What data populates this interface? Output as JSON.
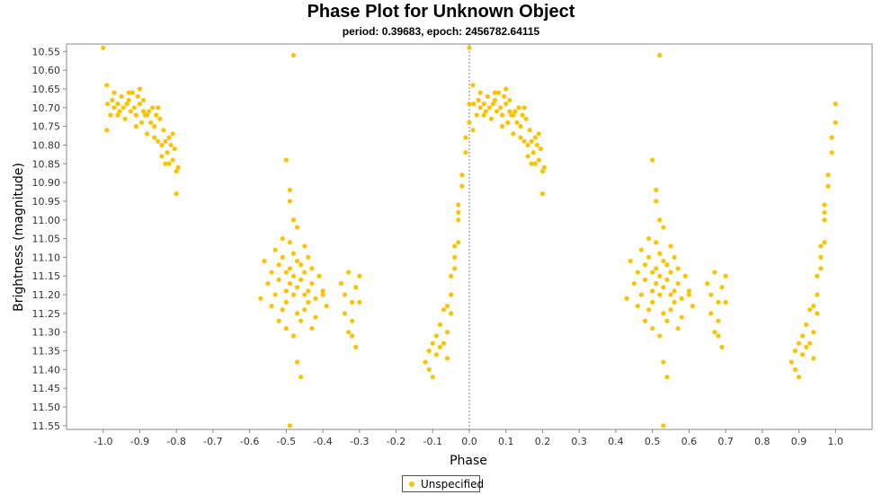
{
  "chart_data": {
    "type": "scatter",
    "title": "Phase Plot for Unknown Object",
    "subtitle": "period: 0.39683, epoch: 2456782.64115",
    "xlabel": "Phase",
    "ylabel": "Brightness (magnitude)",
    "xlim": [
      -1.1,
      1.1
    ],
    "ylim": [
      11.56,
      10.53
    ],
    "y_inverted": true,
    "x_ticks": [
      "-1.0",
      "-0.9",
      "-0.8",
      "-0.7",
      "-0.6",
      "-0.5",
      "-0.4",
      "-0.3",
      "-0.2",
      "-0.1",
      "0.0",
      "0.1",
      "0.2",
      "0.3",
      "0.4",
      "0.5",
      "0.6",
      "0.7",
      "0.8",
      "0.9",
      "1.0"
    ],
    "y_ticks": [
      "10.55",
      "10.60",
      "10.65",
      "10.70",
      "10.75",
      "10.80",
      "10.85",
      "10.90",
      "10.95",
      "11.00",
      "11.05",
      "11.10",
      "11.15",
      "11.20",
      "11.25",
      "11.30",
      "11.35",
      "11.40",
      "11.45",
      "11.50",
      "11.55"
    ],
    "grid": false,
    "reference_line_x": 0.0,
    "legend_position": "bottom-center",
    "series": [
      {
        "name": "Unspecified",
        "color": "#FFC200",
        "points": [
          [
            0.0,
            10.54
          ],
          [
            0.01,
            10.64
          ],
          [
            0.012,
            10.69
          ],
          [
            0.02,
            10.72
          ],
          [
            0.025,
            10.68
          ],
          [
            0.03,
            10.7
          ],
          [
            0.04,
            10.69
          ],
          [
            0.045,
            10.71
          ],
          [
            0.05,
            10.67
          ],
          [
            0.055,
            10.7
          ],
          [
            0.06,
            10.73
          ],
          [
            0.065,
            10.69
          ],
          [
            0.07,
            10.68
          ],
          [
            0.075,
            10.71
          ],
          [
            0.08,
            10.66
          ],
          [
            0.085,
            10.7
          ],
          [
            0.09,
            10.72
          ],
          [
            0.095,
            10.67
          ],
          [
            0.1,
            10.69
          ],
          [
            0.105,
            10.74
          ],
          [
            0.11,
            10.68
          ],
          [
            0.115,
            10.72
          ],
          [
            0.12,
            10.77
          ],
          [
            0.125,
            10.71
          ],
          [
            0.13,
            10.74
          ],
          [
            0.135,
            10.7
          ],
          [
            0.14,
            10.75
          ],
          [
            0.145,
            10.72
          ],
          [
            0.15,
            10.79
          ],
          [
            0.155,
            10.73
          ],
          [
            0.16,
            10.8
          ],
          [
            0.165,
            10.76
          ],
          [
            0.17,
            10.79
          ],
          [
            0.175,
            10.82
          ],
          [
            0.18,
            10.78
          ],
          [
            0.185,
            10.8
          ],
          [
            0.19,
            10.84
          ],
          [
            0.195,
            10.81
          ],
          [
            0.2,
            10.87
          ],
          [
            0.205,
            10.86
          ],
          [
            0.2,
            10.93
          ],
          [
            0.18,
            10.85
          ],
          [
            0.16,
            10.83
          ],
          [
            0.14,
            10.78
          ],
          [
            0.12,
            10.72
          ],
          [
            0.09,
            10.75
          ],
          [
            0.07,
            10.66
          ],
          [
            0.03,
            10.66
          ],
          [
            0.01,
            10.76
          ],
          [
            0.04,
            10.72
          ],
          [
            0.1,
            10.65
          ],
          [
            0.15,
            10.7
          ],
          [
            0.17,
            10.85
          ],
          [
            0.19,
            10.77
          ],
          [
            0.11,
            10.71
          ],
          [
            0.43,
            11.21
          ],
          [
            0.44,
            11.11
          ],
          [
            0.45,
            11.17
          ],
          [
            0.46,
            11.14
          ],
          [
            0.47,
            11.08
          ],
          [
            0.47,
            11.2
          ],
          [
            0.48,
            11.12
          ],
          [
            0.48,
            11.16
          ],
          [
            0.49,
            11.24
          ],
          [
            0.49,
            11.1
          ],
          [
            0.5,
            11.14
          ],
          [
            0.5,
            11.19
          ],
          [
            0.5,
            11.22
          ],
          [
            0.51,
            11.06
          ],
          [
            0.51,
            11.13
          ],
          [
            0.51,
            11.17
          ],
          [
            0.52,
            11.09
          ],
          [
            0.52,
            11.2
          ],
          [
            0.52,
            11.15
          ],
          [
            0.53,
            11.11
          ],
          [
            0.53,
            11.18
          ],
          [
            0.53,
            11.25
          ],
          [
            0.54,
            11.12
          ],
          [
            0.54,
            11.16
          ],
          [
            0.55,
            11.07
          ],
          [
            0.55,
            11.2
          ],
          [
            0.55,
            11.14
          ],
          [
            0.56,
            11.22
          ],
          [
            0.56,
            11.1
          ],
          [
            0.57,
            11.17
          ],
          [
            0.57,
            11.13
          ],
          [
            0.58,
            11.21
          ],
          [
            0.59,
            11.15
          ],
          [
            0.6,
            11.19
          ],
          [
            0.61,
            11.23
          ],
          [
            0.46,
            11.23
          ],
          [
            0.48,
            11.27
          ],
          [
            0.5,
            10.84
          ],
          [
            0.51,
            10.92
          ],
          [
            0.51,
            10.95
          ],
          [
            0.52,
            10.56
          ],
          [
            0.52,
            11.31
          ],
          [
            0.53,
            11.38
          ],
          [
            0.53,
            11.55
          ],
          [
            0.54,
            11.42
          ],
          [
            0.53,
            11.02
          ],
          [
            0.52,
            11.0
          ],
          [
            0.5,
            11.29
          ],
          [
            0.49,
            11.05
          ],
          [
            0.54,
            11.27
          ],
          [
            0.55,
            11.24
          ],
          [
            0.57,
            11.29
          ],
          [
            0.58,
            11.26
          ],
          [
            0.56,
            11.19
          ],
          [
            0.6,
            11.2
          ],
          [
            0.65,
            11.17
          ],
          [
            0.66,
            11.2
          ],
          [
            0.66,
            11.25
          ],
          [
            0.67,
            11.14
          ],
          [
            0.67,
            11.3
          ],
          [
            0.68,
            11.22
          ],
          [
            0.68,
            11.27
          ],
          [
            0.69,
            11.18
          ],
          [
            0.69,
            11.34
          ],
          [
            0.7,
            11.22
          ],
          [
            0.7,
            11.15
          ],
          [
            0.68,
            11.31
          ],
          [
            0.88,
            11.38
          ],
          [
            0.89,
            11.4
          ],
          [
            0.89,
            11.35
          ],
          [
            0.9,
            11.33
          ],
          [
            0.9,
            11.42
          ],
          [
            0.91,
            11.36
          ],
          [
            0.91,
            11.31
          ],
          [
            0.92,
            11.34
          ],
          [
            0.92,
            11.28
          ],
          [
            0.93,
            11.24
          ],
          [
            0.93,
            11.33
          ],
          [
            0.94,
            11.23
          ],
          [
            0.94,
            11.37
          ],
          [
            0.95,
            11.2
          ],
          [
            0.95,
            11.15
          ],
          [
            0.96,
            11.1
          ],
          [
            0.96,
            11.07
          ],
          [
            0.97,
            11.06
          ],
          [
            0.97,
            11.0
          ],
          [
            0.97,
            10.96
          ],
          [
            0.98,
            10.91
          ],
          [
            0.98,
            10.88
          ],
          [
            0.99,
            10.82
          ],
          [
            0.99,
            10.78
          ],
          [
            1.0,
            10.74
          ],
          [
            1.0,
            10.69
          ],
          [
            0.96,
            11.13
          ],
          [
            0.95,
            11.25
          ],
          [
            0.94,
            11.3
          ],
          [
            0.97,
            10.98
          ],
          [
            -1.0,
            10.54
          ],
          [
            -0.99,
            10.64
          ],
          [
            -0.988,
            10.69
          ],
          [
            -0.98,
            10.72
          ],
          [
            -0.975,
            10.68
          ],
          [
            -0.97,
            10.7
          ],
          [
            -0.96,
            10.69
          ],
          [
            -0.955,
            10.71
          ],
          [
            -0.95,
            10.67
          ],
          [
            -0.945,
            10.7
          ],
          [
            -0.94,
            10.73
          ],
          [
            -0.935,
            10.69
          ],
          [
            -0.93,
            10.68
          ],
          [
            -0.925,
            10.71
          ],
          [
            -0.92,
            10.66
          ],
          [
            -0.915,
            10.7
          ],
          [
            -0.91,
            10.72
          ],
          [
            -0.905,
            10.67
          ],
          [
            -0.9,
            10.69
          ],
          [
            -0.895,
            10.74
          ],
          [
            -0.89,
            10.68
          ],
          [
            -0.885,
            10.72
          ],
          [
            -0.88,
            10.77
          ],
          [
            -0.875,
            10.71
          ],
          [
            -0.87,
            10.74
          ],
          [
            -0.865,
            10.7
          ],
          [
            -0.86,
            10.75
          ],
          [
            -0.855,
            10.72
          ],
          [
            -0.85,
            10.79
          ],
          [
            -0.845,
            10.73
          ],
          [
            -0.84,
            10.8
          ],
          [
            -0.835,
            10.76
          ],
          [
            -0.83,
            10.79
          ],
          [
            -0.825,
            10.82
          ],
          [
            -0.82,
            10.78
          ],
          [
            -0.815,
            10.8
          ],
          [
            -0.81,
            10.84
          ],
          [
            -0.805,
            10.81
          ],
          [
            -0.8,
            10.87
          ],
          [
            -0.795,
            10.86
          ],
          [
            -0.8,
            10.93
          ],
          [
            -0.82,
            10.85
          ],
          [
            -0.84,
            10.83
          ],
          [
            -0.86,
            10.78
          ],
          [
            -0.88,
            10.72
          ],
          [
            -0.91,
            10.75
          ],
          [
            -0.93,
            10.66
          ],
          [
            -0.97,
            10.66
          ],
          [
            -0.99,
            10.76
          ],
          [
            -0.96,
            10.72
          ],
          [
            -0.9,
            10.65
          ],
          [
            -0.85,
            10.7
          ],
          [
            -0.83,
            10.85
          ],
          [
            -0.81,
            10.77
          ],
          [
            -0.89,
            10.71
          ],
          [
            -0.57,
            11.21
          ],
          [
            -0.56,
            11.11
          ],
          [
            -0.55,
            11.17
          ],
          [
            -0.54,
            11.14
          ],
          [
            -0.53,
            11.08
          ],
          [
            -0.53,
            11.2
          ],
          [
            -0.52,
            11.12
          ],
          [
            -0.52,
            11.16
          ],
          [
            -0.51,
            11.24
          ],
          [
            -0.51,
            11.1
          ],
          [
            -0.5,
            11.14
          ],
          [
            -0.5,
            11.19
          ],
          [
            -0.5,
            11.22
          ],
          [
            -0.49,
            11.06
          ],
          [
            -0.49,
            11.13
          ],
          [
            -0.49,
            11.17
          ],
          [
            -0.48,
            11.09
          ],
          [
            -0.48,
            11.2
          ],
          [
            -0.48,
            11.15
          ],
          [
            -0.47,
            11.11
          ],
          [
            -0.47,
            11.18
          ],
          [
            -0.47,
            11.25
          ],
          [
            -0.46,
            11.12
          ],
          [
            -0.46,
            11.16
          ],
          [
            -0.45,
            11.07
          ],
          [
            -0.45,
            11.2
          ],
          [
            -0.45,
            11.14
          ],
          [
            -0.44,
            11.22
          ],
          [
            -0.44,
            11.1
          ],
          [
            -0.43,
            11.17
          ],
          [
            -0.43,
            11.13
          ],
          [
            -0.42,
            11.21
          ],
          [
            -0.41,
            11.15
          ],
          [
            -0.4,
            11.19
          ],
          [
            -0.39,
            11.23
          ],
          [
            -0.54,
            11.23
          ],
          [
            -0.52,
            11.27
          ],
          [
            -0.5,
            10.84
          ],
          [
            -0.49,
            10.92
          ],
          [
            -0.49,
            10.95
          ],
          [
            -0.48,
            10.56
          ],
          [
            -0.48,
            11.31
          ],
          [
            -0.47,
            11.38
          ],
          [
            -0.49,
            11.55
          ],
          [
            -0.46,
            11.42
          ],
          [
            -0.47,
            11.02
          ],
          [
            -0.48,
            11.0
          ],
          [
            -0.5,
            11.29
          ],
          [
            -0.51,
            11.05
          ],
          [
            -0.46,
            11.27
          ],
          [
            -0.45,
            11.24
          ],
          [
            -0.43,
            11.29
          ],
          [
            -0.42,
            11.26
          ],
          [
            -0.44,
            11.19
          ],
          [
            -0.4,
            11.2
          ],
          [
            -0.35,
            11.17
          ],
          [
            -0.34,
            11.2
          ],
          [
            -0.34,
            11.25
          ],
          [
            -0.33,
            11.14
          ],
          [
            -0.33,
            11.3
          ],
          [
            -0.32,
            11.22
          ],
          [
            -0.32,
            11.27
          ],
          [
            -0.31,
            11.18
          ],
          [
            -0.31,
            11.34
          ],
          [
            -0.3,
            11.22
          ],
          [
            -0.3,
            11.15
          ],
          [
            -0.32,
            11.31
          ],
          [
            -0.12,
            11.38
          ],
          [
            -0.11,
            11.4
          ],
          [
            -0.11,
            11.35
          ],
          [
            -0.1,
            11.33
          ],
          [
            -0.1,
            11.42
          ],
          [
            -0.09,
            11.36
          ],
          [
            -0.09,
            11.31
          ],
          [
            -0.08,
            11.34
          ],
          [
            -0.08,
            11.28
          ],
          [
            -0.07,
            11.24
          ],
          [
            -0.07,
            11.33
          ],
          [
            -0.06,
            11.23
          ],
          [
            -0.06,
            11.37
          ],
          [
            -0.05,
            11.2
          ],
          [
            -0.05,
            11.15
          ],
          [
            -0.04,
            11.1
          ],
          [
            -0.04,
            11.07
          ],
          [
            -0.03,
            11.06
          ],
          [
            -0.03,
            11.0
          ],
          [
            -0.03,
            10.96
          ],
          [
            -0.02,
            10.91
          ],
          [
            -0.02,
            10.88
          ],
          [
            -0.01,
            10.82
          ],
          [
            -0.01,
            10.78
          ],
          [
            0.0,
            10.74
          ],
          [
            0.0,
            10.69
          ],
          [
            -0.04,
            11.13
          ],
          [
            -0.05,
            11.25
          ],
          [
            -0.06,
            11.3
          ],
          [
            -0.03,
            10.98
          ]
        ]
      }
    ]
  }
}
